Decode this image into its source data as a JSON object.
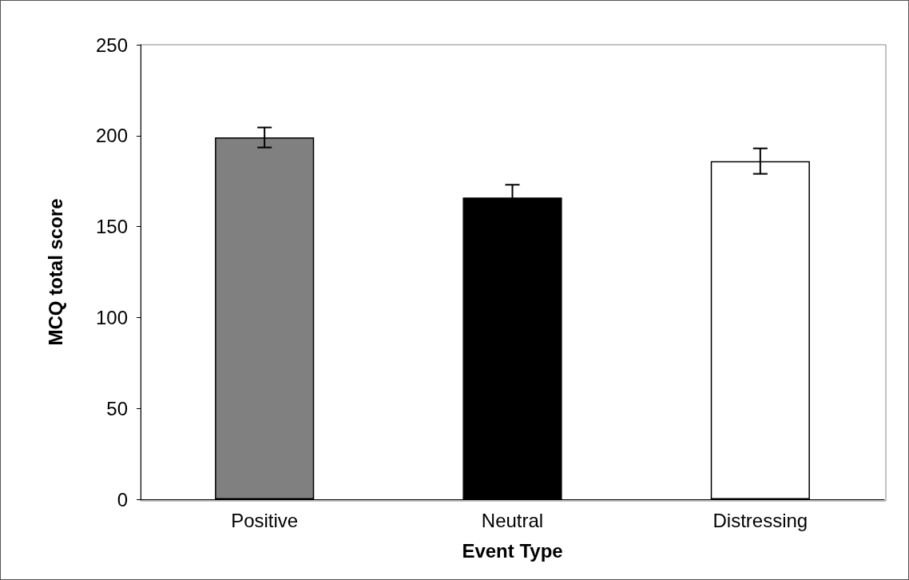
{
  "chart_data": {
    "type": "bar",
    "xlabel": "Event Type",
    "ylabel": "MCQ total score",
    "categories": [
      "Positive",
      "Neutral",
      "Distressing"
    ],
    "values": [
      199,
      166,
      186
    ],
    "colors": [
      "#808080",
      "#000000",
      "#ffffff"
    ],
    "errors": [
      5.5,
      7,
      7
    ],
    "ylim": [
      0,
      250
    ],
    "yticks": [
      0,
      50,
      100,
      150,
      200,
      250
    ],
    "grid": false
  }
}
